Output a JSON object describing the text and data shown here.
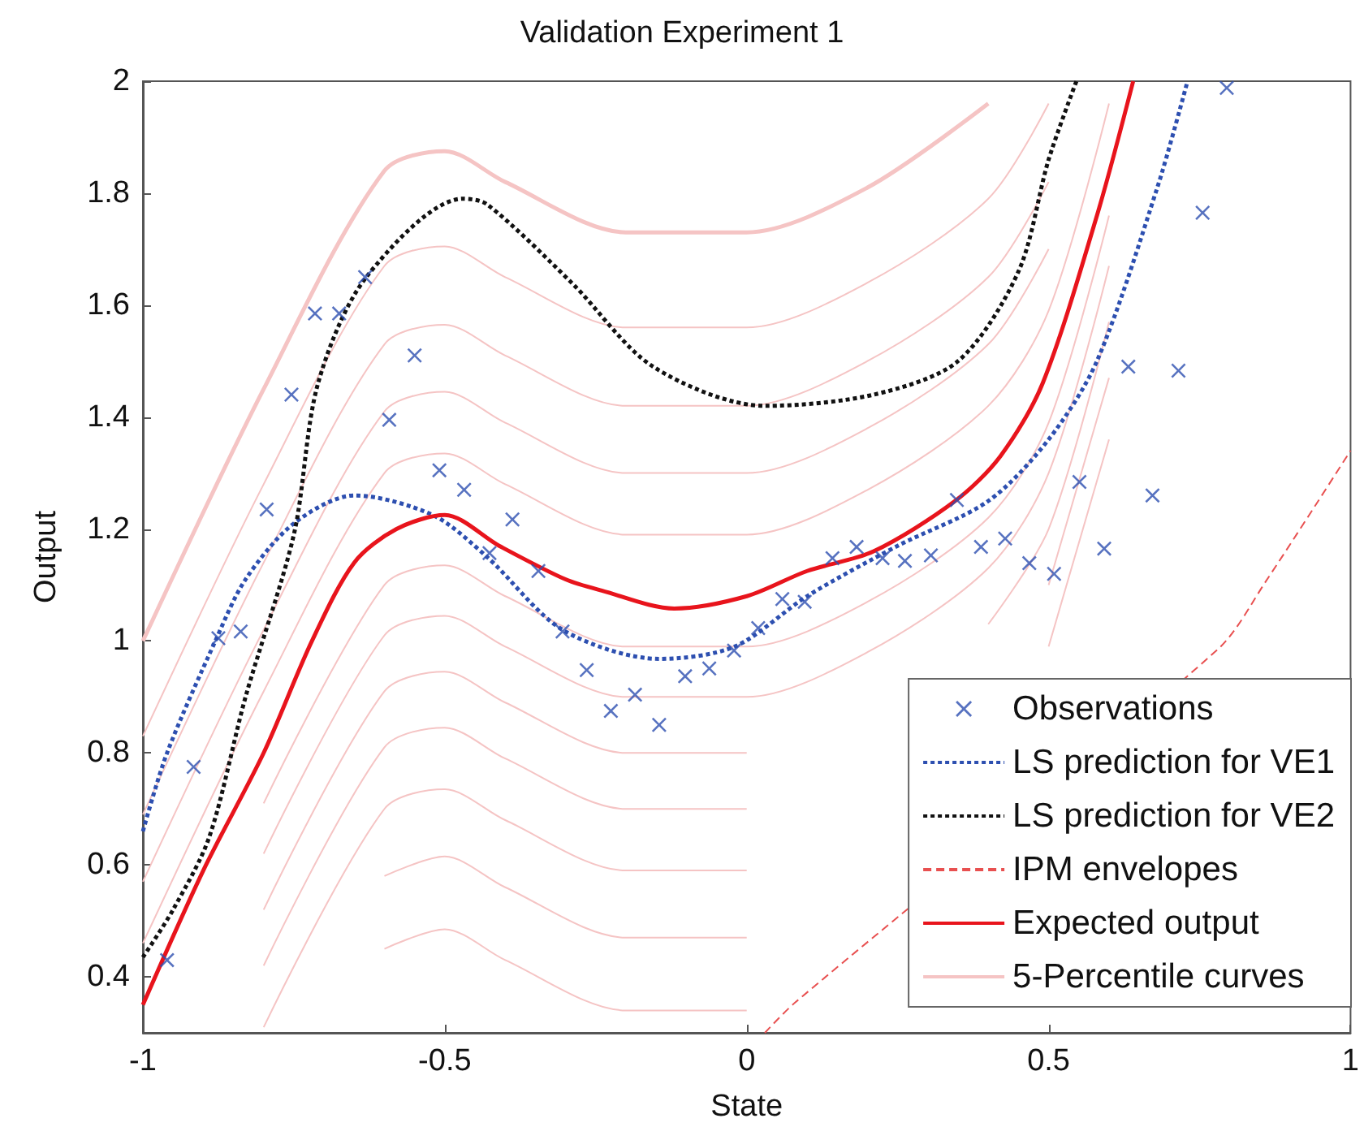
{
  "chart_data": {
    "type": "line",
    "title": "Validation Experiment 1",
    "xlabel": "State",
    "ylabel": "Output",
    "xlim": [
      -1,
      1
    ],
    "ylim": [
      0.3,
      2
    ],
    "xticks": [
      -1,
      -0.5,
      0,
      0.5,
      1
    ],
    "yticks": [
      0.4,
      0.6,
      0.8,
      1,
      1.2,
      1.4,
      1.6,
      1.8,
      2
    ],
    "legend": "bottom right",
    "series": [
      {
        "name": "Observations",
        "type": "scatter",
        "color": "#2d4fb0",
        "marker": "cross",
        "x": [
          -0.96,
          -0.916,
          -0.875,
          -0.838,
          -0.795,
          -0.754,
          -0.715,
          -0.675,
          -0.632,
          -0.592,
          -0.55,
          -0.509,
          -0.468,
          -0.426,
          -0.388,
          -0.345,
          -0.305,
          -0.265,
          -0.225,
          -0.185,
          -0.145,
          -0.102,
          -0.062,
          -0.021,
          0.019,
          0.059,
          0.096,
          0.142,
          0.182,
          0.225,
          0.262,
          0.305,
          0.348,
          0.388,
          0.428,
          0.468,
          0.509,
          0.551,
          0.592,
          0.632,
          0.672,
          0.715,
          0.755,
          0.795
        ],
        "values": [
          0.43,
          0.775,
          1.005,
          1.017,
          1.235,
          1.44,
          1.585,
          1.585,
          1.65,
          1.395,
          1.51,
          1.305,
          1.27,
          1.157,
          1.217,
          1.125,
          1.017,
          0.948,
          0.875,
          0.904,
          0.85,
          0.937,
          0.951,
          0.983,
          1.023,
          1.075,
          1.07,
          1.148,
          1.168,
          1.148,
          1.143,
          1.153,
          1.252,
          1.168,
          1.183,
          1.139,
          1.12,
          1.284,
          1.165,
          1.49,
          1.26,
          1.483,
          1.765,
          1.988
        ]
      },
      {
        "name": "LS prediction for VE1",
        "color": "#2d4fb0",
        "line_style": "dotted",
        "marker": "none",
        "x": [
          -1,
          -0.96,
          -0.88,
          -0.83,
          -0.75,
          -0.65,
          -0.52,
          -0.43,
          -0.305,
          -0.145,
          -0.02,
          0.1,
          0.25,
          0.4,
          0.5,
          0.58,
          0.68,
          0.73
        ],
        "values": [
          0.66,
          0.8,
          1.0,
          1.11,
          1.21,
          1.26,
          1.225,
          1.15,
          1.02,
          0.968,
          0.99,
          1.08,
          1.17,
          1.25,
          1.36,
          1.5,
          1.81,
          2.0
        ]
      },
      {
        "name": "LS prediction for VE2",
        "color": "#111111",
        "line_style": "dotted",
        "marker": "none",
        "x": [
          -1,
          -0.95,
          -0.89,
          -0.83,
          -0.75,
          -0.71,
          -0.63,
          -0.47,
          -0.43,
          -0.29,
          -0.155,
          0.03,
          0.21,
          0.35,
          0.45,
          0.5,
          0.546
        ],
        "values": [
          0.435,
          0.52,
          0.65,
          0.9,
          1.19,
          1.46,
          1.65,
          1.79,
          1.78,
          1.64,
          1.49,
          1.42,
          1.44,
          1.5,
          1.66,
          1.86,
          2.0
        ]
      },
      {
        "name": "IPM envelopes",
        "color": "#e85050",
        "line_style": "dashed",
        "marker": "none",
        "x": [
          0.03,
          0.08,
          0.78,
          0.86,
          1.0
        ],
        "values": [
          0.3,
          0.354,
          0.985,
          1.107,
          1.34
        ]
      },
      {
        "name": "Expected output",
        "color": "#e8141c",
        "line_style": "solid",
        "marker": "none",
        "x": [
          -1,
          -0.9,
          -0.8,
          -0.72,
          -0.65,
          -0.58,
          -0.5,
          -0.41,
          -0.3,
          -0.24,
          -0.12,
          0,
          0.1,
          0.21,
          0.345,
          0.42,
          0.49,
          0.58,
          0.64
        ],
        "values": [
          0.35,
          0.59,
          0.8,
          1.0,
          1.14,
          1.2,
          1.225,
          1.17,
          1.11,
          1.09,
          1.058,
          1.08,
          1.125,
          1.16,
          1.25,
          1.33,
          1.46,
          1.76,
          2.0
        ]
      },
      {
        "name": "5-Percentile curves",
        "color": "#f5c4c4",
        "line_style": "solid",
        "marker": "none",
        "x": [
          -1,
          -0.8,
          -0.6,
          -0.5,
          -0.4,
          -0.2,
          0,
          0.2,
          0.4
        ],
        "values": [
          1.0,
          1.45,
          1.84,
          1.875,
          1.82,
          1.73,
          1.73,
          1.81,
          1.96
        ]
      },
      {
        "color": "#f5c4c4",
        "line_style": "solid",
        "marker": "none",
        "x": [
          -1,
          -0.8,
          -0.6,
          -0.5,
          -0.4,
          -0.2,
          0,
          0.2,
          0.4,
          0.5
        ],
        "values": [
          0.83,
          1.28,
          1.67,
          1.705,
          1.65,
          1.56,
          1.56,
          1.64,
          1.79,
          1.96
        ]
      },
      {
        "color": "#f5c4c4",
        "line_style": "solid",
        "marker": "none",
        "x": [
          -1,
          -0.8,
          -0.6,
          -0.5,
          -0.4,
          -0.2,
          0,
          0.2,
          0.4,
          0.5
        ],
        "values": [
          0.69,
          1.14,
          1.53,
          1.565,
          1.51,
          1.42,
          1.42,
          1.5,
          1.65,
          1.82
        ]
      },
      {
        "color": "#f5c4c4",
        "line_style": "solid",
        "marker": "none",
        "x": [
          -1,
          -0.8,
          -0.6,
          -0.5,
          -0.4,
          -0.2,
          0,
          0.2,
          0.4,
          0.5
        ],
        "values": [
          0.57,
          1.02,
          1.41,
          1.445,
          1.39,
          1.3,
          1.3,
          1.38,
          1.53,
          1.7
        ]
      },
      {
        "color": "#f5c4c4",
        "line_style": "solid",
        "marker": "none",
        "x": [
          -1,
          -0.8,
          -0.6,
          -0.5,
          -0.4,
          -0.2,
          0,
          0.2,
          0.4,
          0.5,
          0.6
        ],
        "values": [
          0.46,
          0.91,
          1.3,
          1.335,
          1.28,
          1.19,
          1.19,
          1.27,
          1.42,
          1.59,
          1.96
        ]
      },
      {
        "color": "#f5c4c4",
        "line_style": "solid",
        "marker": "none",
        "x": [
          -0.8,
          -0.6,
          -0.5,
          -0.4,
          -0.2,
          0,
          0.2,
          0.4,
          0.5,
          0.6
        ],
        "values": [
          0.71,
          1.1,
          1.135,
          1.08,
          0.99,
          0.99,
          1.07,
          1.22,
          1.39,
          1.76
        ]
      },
      {
        "color": "#f5c4c4",
        "line_style": "solid",
        "marker": "none",
        "x": [
          -0.8,
          -0.6,
          -0.5,
          -0.4,
          -0.2,
          0,
          0.2,
          0.4,
          0.5,
          0.6
        ],
        "values": [
          0.62,
          1.01,
          1.045,
          0.99,
          0.9,
          0.9,
          0.98,
          1.13,
          1.3,
          1.67
        ]
      },
      {
        "color": "#f5c4c4",
        "line_style": "solid",
        "marker": "none",
        "x": [
          -0.8,
          -0.6,
          -0.5,
          -0.4,
          -0.2,
          0,
          0.2,
          0.4,
          0.5,
          0.6
        ],
        "values": [
          0.52,
          0.91,
          0.945,
          0.89,
          0.8,
          0.8,
          null,
          1.03,
          1.2,
          1.57
        ]
      },
      {
        "color": "#f5c4c4",
        "line_style": "solid",
        "marker": "none",
        "x": [
          -0.8,
          -0.6,
          -0.5,
          -0.4,
          -0.2,
          0,
          0.2,
          0.4,
          0.5,
          0.6
        ],
        "values": [
          0.42,
          0.81,
          0.845,
          0.79,
          0.7,
          0.7,
          null,
          null,
          1.1,
          1.47
        ]
      },
      {
        "color": "#f5c4c4",
        "line_style": "solid",
        "marker": "none",
        "x": [
          -0.8,
          -0.6,
          -0.5,
          -0.4,
          -0.2,
          0,
          0.2,
          0.4,
          0.5,
          0.6
        ],
        "values": [
          0.31,
          0.7,
          0.735,
          0.68,
          0.59,
          0.59,
          null,
          null,
          0.99,
          1.36
        ]
      },
      {
        "color": "#f5c4c4",
        "line_style": "solid",
        "marker": "none",
        "x": [
          -0.6,
          -0.5,
          -0.4,
          -0.2,
          0
        ],
        "values": [
          0.58,
          0.615,
          0.56,
          0.47,
          0.47
        ]
      },
      {
        "color": "#f5c4c4",
        "line_style": "solid",
        "marker": "none",
        "x": [
          -0.6,
          -0.5,
          -0.4,
          -0.2,
          0
        ],
        "values": [
          0.45,
          0.485,
          0.43,
          0.34,
          0.34
        ]
      }
    ]
  }
}
